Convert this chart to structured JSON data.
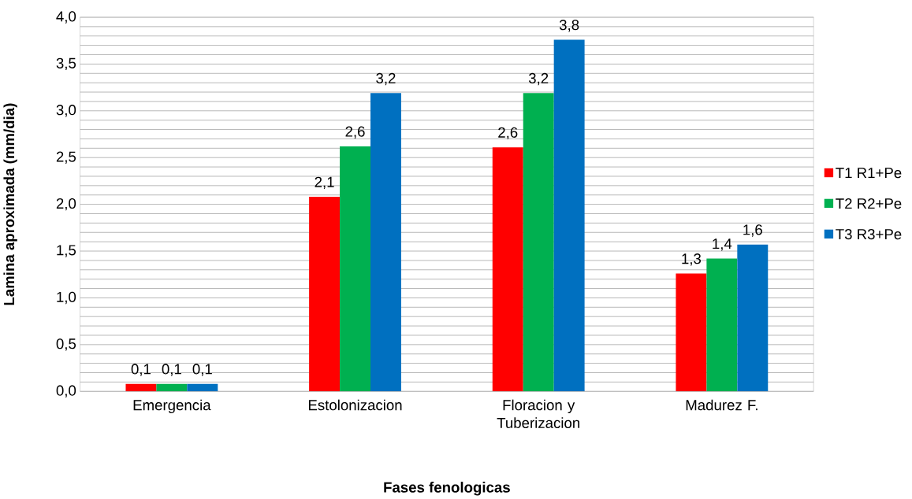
{
  "chart_data": {
    "type": "bar",
    "xlabel": "Fases fenologicas",
    "ylabel": "Lamina aproximada (mm/dia)",
    "categories": [
      "Emergencia",
      "Estolonizacion",
      "Floracion y Tuberizacion",
      "Madurez F."
    ],
    "series": [
      {
        "name": "T1 R1+Pe",
        "color": "#ff0000",
        "values": [
          0.08,
          2.08,
          2.61,
          1.26
        ],
        "value_labels": [
          "0,1",
          "2,1",
          "2,6",
          "1,3"
        ]
      },
      {
        "name": "T2 R2+Pe",
        "color": "#00b050",
        "values": [
          0.08,
          2.62,
          3.19,
          1.42
        ],
        "value_labels": [
          "0,1",
          "2,6",
          "3,2",
          "1,4"
        ]
      },
      {
        "name": "T3 R3+Pe",
        "color": "#0070c0",
        "values": [
          0.08,
          3.19,
          3.76,
          1.57
        ],
        "value_labels": [
          "0,1",
          "3,2",
          "3,8",
          "1,6"
        ]
      }
    ],
    "ylim": [
      0,
      4
    ],
    "yticks": [
      {
        "value": 0,
        "label": "0,0"
      },
      {
        "value": 0.1,
        "label": null
      },
      {
        "value": 0.2,
        "label": null
      },
      {
        "value": 0.3,
        "label": null
      },
      {
        "value": 0.4,
        "label": null
      },
      {
        "value": 0.5,
        "label": "0,5"
      },
      {
        "value": 0.6,
        "label": null
      },
      {
        "value": 0.7,
        "label": null
      },
      {
        "value": 0.8,
        "label": null
      },
      {
        "value": 0.9,
        "label": null
      },
      {
        "value": 1.0,
        "label": "1,0"
      },
      {
        "value": 1.1,
        "label": null
      },
      {
        "value": 1.2,
        "label": null
      },
      {
        "value": 1.3,
        "label": null
      },
      {
        "value": 1.4,
        "label": null
      },
      {
        "value": 1.5,
        "label": "1,5"
      },
      {
        "value": 1.6,
        "label": null
      },
      {
        "value": 1.7,
        "label": null
      },
      {
        "value": 1.8,
        "label": null
      },
      {
        "value": 1.9,
        "label": null
      },
      {
        "value": 2.0,
        "label": "2,0"
      },
      {
        "value": 2.1,
        "label": null
      },
      {
        "value": 2.2,
        "label": null
      },
      {
        "value": 2.3,
        "label": null
      },
      {
        "value": 2.4,
        "label": null
      },
      {
        "value": 2.5,
        "label": "2,5"
      },
      {
        "value": 2.6,
        "label": null
      },
      {
        "value": 2.7,
        "label": null
      },
      {
        "value": 2.8,
        "label": null
      },
      {
        "value": 2.9,
        "label": null
      },
      {
        "value": 3.0,
        "label": "3,0"
      },
      {
        "value": 3.1,
        "label": null
      },
      {
        "value": 3.2,
        "label": null
      },
      {
        "value": 3.3,
        "label": null
      },
      {
        "value": 3.4,
        "label": null
      },
      {
        "value": 3.5,
        "label": "3,5"
      },
      {
        "value": 3.6,
        "label": null
      },
      {
        "value": 3.7,
        "label": null
      },
      {
        "value": 3.8,
        "label": null
      },
      {
        "value": 3.9,
        "label": null
      },
      {
        "value": 4.0,
        "label": "4,0"
      }
    ],
    "grid": "y",
    "legend": "right"
  }
}
